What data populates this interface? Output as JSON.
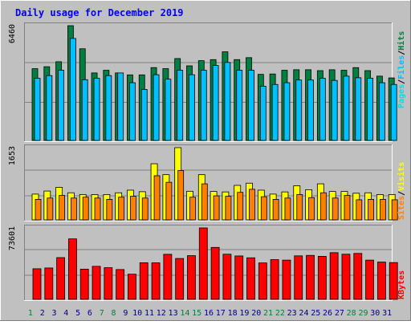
{
  "title": "Daily usage for December 2019",
  "colors": {
    "background": "#c0c0c0",
    "title_text": "#0000ff",
    "hits": "#008040",
    "files": "#00c0ff",
    "pages": "#00e0e0",
    "visits": "#ffff00",
    "sites": "#ff8000",
    "kbytes": "#ff0000",
    "weekend_day": "#008040",
    "weekday": "#000080"
  },
  "chart_data": [
    {
      "type": "bar",
      "name": "hits-files",
      "ymax_label": "6460",
      "ylim": [
        0,
        6460
      ],
      "legend": [
        "Pages",
        "/",
        "Files",
        "/",
        "Hits"
      ],
      "categories": [
        "1",
        "2",
        "3",
        "4",
        "5",
        "6",
        "7",
        "8",
        "9",
        "10",
        "11",
        "12",
        "13",
        "14",
        "15",
        "16",
        "17",
        "18",
        "19",
        "20",
        "21",
        "22",
        "23",
        "24",
        "25",
        "26",
        "27",
        "28",
        "29",
        "30",
        "31"
      ],
      "weekend_days": [
        "1",
        "7",
        "8",
        "14",
        "15",
        "21",
        "22",
        "28",
        "29"
      ],
      "series": [
        {
          "name": "Hits",
          "values": [
            4040,
            4150,
            4430,
            6460,
            5160,
            3800,
            3950,
            3800,
            3690,
            3690,
            4100,
            4040,
            4610,
            4200,
            4490,
            4550,
            4990,
            4550,
            4660,
            3720,
            3740,
            3950,
            3980,
            3980,
            3930,
            3980,
            3950,
            4100,
            3930,
            3620,
            3520
          ]
        },
        {
          "name": "Files",
          "values": [
            3500,
            3650,
            3950,
            5740,
            3420,
            3500,
            3650,
            3800,
            3250,
            2870,
            3700,
            3450,
            3950,
            3700,
            3950,
            4220,
            4390,
            3950,
            3950,
            3050,
            3150,
            3250,
            3400,
            3400,
            3500,
            3380,
            3620,
            3530,
            3500,
            3250,
            3150
          ]
        }
      ]
    },
    {
      "type": "bar",
      "name": "visits-sites",
      "ymax_label": "1653",
      "ylim": [
        0,
        1653
      ],
      "legend": [
        "Sites",
        "/",
        "Visits"
      ],
      "categories": [
        "1",
        "2",
        "3",
        "4",
        "5",
        "6",
        "7",
        "8",
        "9",
        "10",
        "11",
        "12",
        "13",
        "14",
        "15",
        "16",
        "17",
        "18",
        "19",
        "20",
        "21",
        "22",
        "23",
        "24",
        "25",
        "26",
        "27",
        "28",
        "29",
        "30",
        "31"
      ],
      "series": [
        {
          "name": "Visits",
          "values": [
            590,
            660,
            745,
            620,
            580,
            580,
            580,
            620,
            680,
            645,
            1285,
            1035,
            1653,
            655,
            1035,
            650,
            640,
            790,
            840,
            680,
            590,
            640,
            780,
            690,
            825,
            650,
            650,
            610,
            620,
            580,
            580
          ]
        },
        {
          "name": "Sites",
          "values": [
            470,
            500,
            560,
            500,
            520,
            500,
            470,
            520,
            540,
            500,
            1010,
            860,
            1130,
            520,
            825,
            550,
            540,
            630,
            700,
            530,
            470,
            500,
            580,
            510,
            620,
            500,
            560,
            460,
            470,
            470,
            460
          ]
        }
      ]
    },
    {
      "type": "bar",
      "name": "kbytes",
      "ymax_label": "73601",
      "ylim": [
        0,
        73601
      ],
      "legend": [
        "KBytes"
      ],
      "categories": [
        "1",
        "2",
        "3",
        "4",
        "5",
        "6",
        "7",
        "8",
        "9",
        "10",
        "11",
        "12",
        "13",
        "14",
        "15",
        "16",
        "17",
        "18",
        "19",
        "20",
        "21",
        "22",
        "23",
        "24",
        "25",
        "26",
        "27",
        "28",
        "29",
        "30",
        "31"
      ],
      "series": [
        {
          "name": "KBytes",
          "values": [
            31500,
            32300,
            43000,
            62300,
            31100,
            34000,
            32600,
            30700,
            25900,
            37700,
            37600,
            46400,
            42100,
            45000,
            73601,
            53500,
            46500,
            44700,
            42800,
            37500,
            40900,
            40400,
            44800,
            45300,
            44300,
            48100,
            46500,
            47300,
            40400,
            38400,
            37900
          ]
        }
      ]
    }
  ]
}
